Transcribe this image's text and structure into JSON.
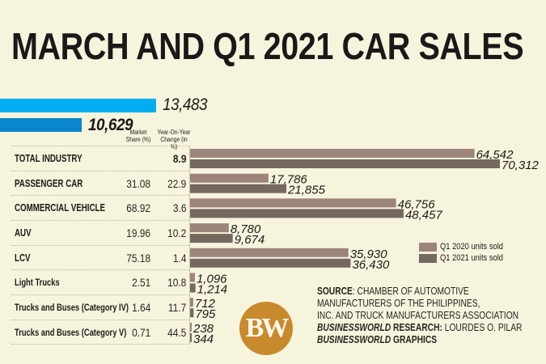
{
  "title": "MARCH AND Q1 2021 CAR SALES",
  "colors": {
    "background": "#f6f4dd",
    "march_2021": "#00aeef",
    "march_2020": "#0a86cc",
    "q1_2020": "#9d847a",
    "q1_2021": "#74695f",
    "logo": "#c98a2e"
  },
  "march_bars": [
    {
      "value": 13483,
      "label": "13,483"
    },
    {
      "value": 10629,
      "label": "10,629"
    }
  ],
  "table": {
    "headers": {
      "share": "Market Share (%)",
      "share_l1": "Market",
      "share_l2": "Share (%)",
      "yoy_l1": "Year-On-Year",
      "yoy_l2": "Change (in %)"
    },
    "rows": [
      {
        "label": "TOTAL INDUSTRY",
        "share": "",
        "yoy": "8.9"
      },
      {
        "label": "PASSENGER CAR",
        "share": "31.08",
        "yoy": "22.9"
      },
      {
        "label": "COMMERCIAL VEHICLE",
        "share": "68.92",
        "yoy": "3.6"
      },
      {
        "label": "AUV",
        "share": "19.96",
        "yoy": "10.2"
      },
      {
        "label": "LCV",
        "share": "75.18",
        "yoy": "1.4"
      },
      {
        "label": "Light Trucks",
        "share": "2.51",
        "yoy": "10.8"
      },
      {
        "label": "Trucks and Buses (Category IV)",
        "share": "1.64",
        "yoy": "11.7"
      },
      {
        "label": "Trucks and Buses (Category V)",
        "share": "0.71",
        "yoy": "44.5"
      }
    ]
  },
  "legend": [
    {
      "label": "Q1 2020 units sold"
    },
    {
      "label": "Q1 2021 units sold"
    }
  ],
  "source": {
    "l1_bold": "SOURCE",
    "l1_rest": ": CHAMBER OF AUTOMOTIVE",
    "l2": "MANUFACTURERS OF THE PHILIPPINES,",
    "l3": "INC. AND TRUCK MANUFACTURERS ASSOCIATION",
    "l4_italic": "BUSINESSWORLD",
    "l4_bold": " RESEARCH:",
    "l4_rest": " LOURDES O. PILAR",
    "l5_italic": "BUSINESSWORLD",
    "l5_rest": " GRAPHICS"
  },
  "logo_text": "BW",
  "chart_data": {
    "type": "bar",
    "orientation": "horizontal",
    "title": "MARCH AND Q1 2021 CAR SALES",
    "categories": [
      "TOTAL INDUSTRY",
      "PASSENGER CAR",
      "COMMERCIAL VEHICLE",
      "AUV",
      "LCV",
      "Light Trucks",
      "Trucks and Buses (Category IV)",
      "Trucks and Buses (Category V)"
    ],
    "series": [
      {
        "name": "Q1 2020 units sold",
        "values": [
          64542,
          17786,
          46756,
          8780,
          35930,
          1096,
          712,
          238
        ],
        "labels": [
          "64,542",
          "17,786",
          "46,756",
          "8,780",
          "35,930",
          "1,096",
          "712",
          "238"
        ]
      },
      {
        "name": "Q1 2021 units sold",
        "values": [
          70312,
          21855,
          48457,
          9674,
          36430,
          1214,
          795,
          344
        ],
        "labels": [
          "70,312",
          "21,855",
          "48,457",
          "9,674",
          "36,430",
          "1,214",
          "795",
          "344"
        ]
      }
    ],
    "march_totals": {
      "values": [
        13483,
        10629
      ],
      "labels": [
        "13,483",
        "10,629"
      ]
    },
    "market_share_pct": [
      null,
      31.08,
      68.92,
      19.96,
      75.18,
      2.51,
      1.64,
      0.71
    ],
    "yoy_change_pct": [
      8.9,
      22.9,
      3.6,
      10.2,
      1.4,
      10.8,
      11.7,
      44.5
    ],
    "xlim": [
      0,
      70312
    ],
    "legend_position": "right",
    "grid": false
  }
}
